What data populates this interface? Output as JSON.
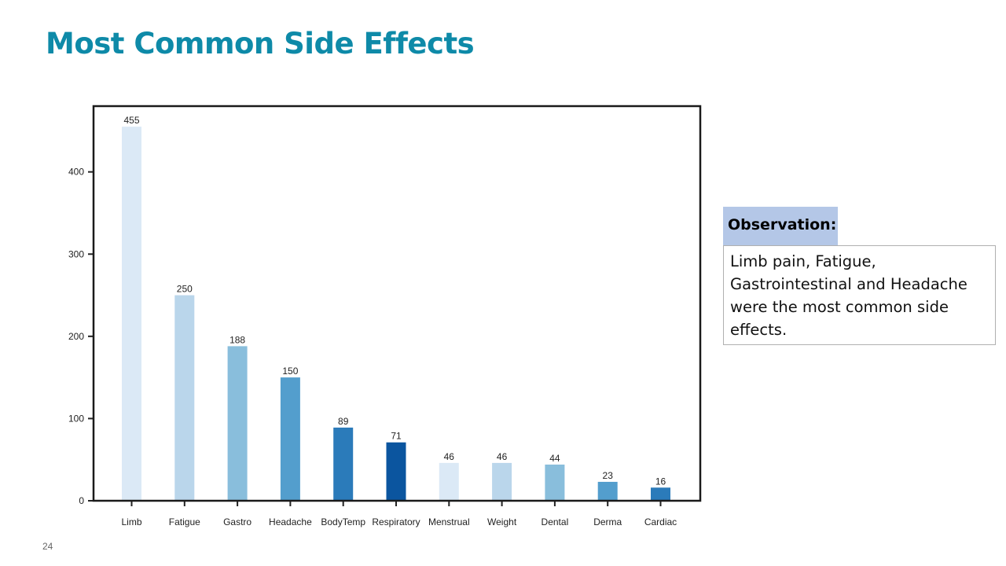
{
  "slide": {
    "title": "Most Common Side Effects",
    "observation_header": "Observation:",
    "observation_text": "Limb pain, Fatigue, Gastrointestinal and Headache were the most common side effects.",
    "page_number": "24"
  },
  "chart_data": {
    "type": "bar",
    "title": "",
    "xlabel": "",
    "ylabel": "",
    "categories": [
      "Limb",
      "Fatigue",
      "Gastro",
      "Headache",
      "BodyTemp",
      "Respiratory",
      "Menstrual",
      "Weight",
      "Dental",
      "Derma",
      "Cardiac"
    ],
    "values": [
      455,
      250,
      188,
      150,
      89,
      71,
      46,
      46,
      44,
      23,
      16
    ],
    "colors": [
      "#dbe9f6",
      "#bad6eb",
      "#89bedc",
      "#539ecd",
      "#2b7bba",
      "#0b559f",
      "#dbe9f6",
      "#bad6eb",
      "#89bedc",
      "#539ecd",
      "#2b7bba"
    ],
    "ylim": [
      0,
      480
    ],
    "yticks": [
      0,
      100,
      200,
      300,
      400
    ],
    "grid": false,
    "legend": "none",
    "data_labels": true
  }
}
